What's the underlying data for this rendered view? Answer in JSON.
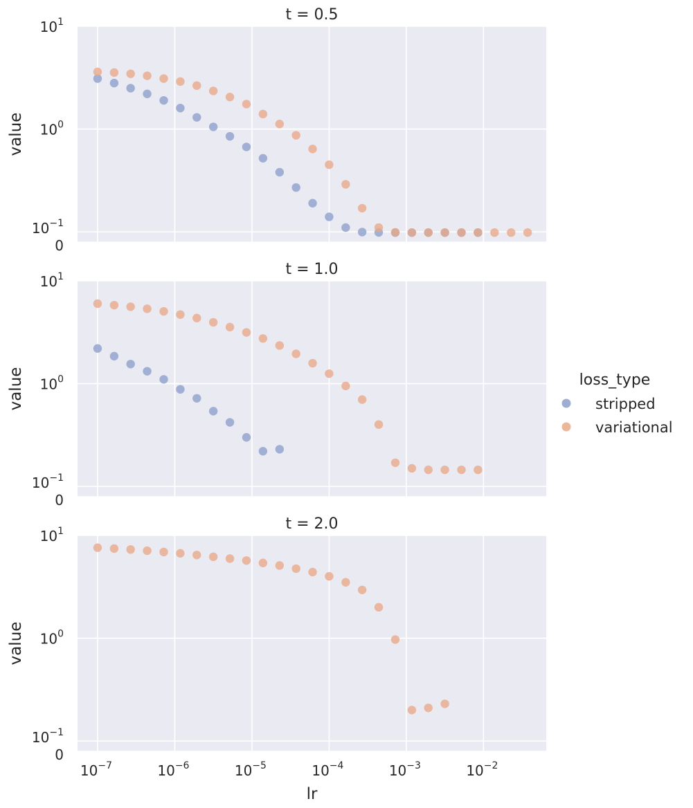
{
  "chart_data": {
    "type": "scatter",
    "xlabel": "lr",
    "ylabel": "value",
    "xscale": "log",
    "yscale": "symlog",
    "xlim": [
      5.5e-08,
      0.065
    ],
    "ylim": [
      0,
      10
    ],
    "x_ticks": [
      {
        "value": 1e-07,
        "base": "10",
        "exp": "−7"
      },
      {
        "value": 1e-06,
        "base": "10",
        "exp": "−6"
      },
      {
        "value": 1e-05,
        "base": "10",
        "exp": "−5"
      },
      {
        "value": 0.0001,
        "base": "10",
        "exp": "−4"
      },
      {
        "value": 0.001,
        "base": "10",
        "exp": "−3"
      },
      {
        "value": 0.01,
        "base": "10",
        "exp": "−2"
      }
    ],
    "y_ticks": [
      {
        "value": 0,
        "base": "0",
        "exp": ""
      },
      {
        "value": 0.1,
        "base": "10",
        "exp": "−1"
      },
      {
        "value": 1,
        "base": "10",
        "exp": "0"
      },
      {
        "value": 10,
        "base": "10",
        "exp": "1"
      }
    ],
    "grid": true,
    "legend": {
      "title": "loss_type",
      "placement": "right",
      "entries": [
        {
          "name": "stripped",
          "color": "#8da0cb"
        },
        {
          "name": "variational",
          "color": "#e9a98a"
        }
      ]
    },
    "panels": [
      {
        "title": "t = 0.5",
        "series": [
          {
            "name": "stripped",
            "x": [
              1e-07,
              1.64e-07,
              2.68e-07,
              4.39e-07,
              7.2e-07,
              1.18e-06,
              1.93e-06,
              3.16e-06,
              5.18e-06,
              8.48e-06,
              1.39e-05,
              2.28e-05,
              3.73e-05,
              6.11e-05,
              0.0001,
              0.000164,
              0.000268,
              0.000439,
              0.00072,
              0.00118,
              0.00193,
              0.00316,
              0.00518,
              0.00848
            ],
            "y": [
              3.1,
              2.8,
              2.5,
              2.2,
              1.9,
              1.6,
              1.3,
              1.05,
              0.85,
              0.67,
              0.52,
              0.38,
              0.27,
              0.19,
              0.14,
              0.11,
              0.098,
              0.094,
              0.093,
              0.093,
              0.093,
              0.093,
              0.093,
              0.093
            ]
          },
          {
            "name": "variational",
            "x": [
              1e-07,
              1.64e-07,
              2.68e-07,
              4.39e-07,
              7.2e-07,
              1.18e-06,
              1.93e-06,
              3.16e-06,
              5.18e-06,
              8.48e-06,
              1.39e-05,
              2.28e-05,
              3.73e-05,
              6.11e-05,
              0.0001,
              0.000164,
              0.000268,
              0.000439,
              0.00072,
              0.00118,
              0.00193,
              0.00316,
              0.00518,
              0.00848,
              0.0139,
              0.0228,
              0.0373
            ],
            "y": [
              3.6,
              3.55,
              3.45,
              3.3,
              3.1,
              2.9,
              2.65,
              2.35,
              2.05,
              1.75,
              1.4,
              1.12,
              0.87,
              0.64,
              0.45,
              0.29,
              0.17,
              0.11,
              0.095,
              0.093,
              0.093,
              0.093,
              0.093,
              0.093,
              0.093,
              0.093,
              0.093
            ]
          }
        ]
      },
      {
        "title": "t = 1.0",
        "series": [
          {
            "name": "stripped",
            "x": [
              1e-07,
              1.64e-07,
              2.68e-07,
              4.39e-07,
              7.2e-07,
              1.18e-06,
              1.93e-06,
              3.16e-06,
              5.18e-06,
              8.48e-06,
              1.39e-05,
              2.28e-05
            ],
            "y": [
              2.2,
              1.85,
              1.55,
              1.32,
              1.1,
              0.88,
              0.72,
              0.54,
              0.42,
              0.3,
              0.22,
              0.23
            ]
          },
          {
            "name": "variational",
            "x": [
              1e-07,
              1.64e-07,
              2.68e-07,
              4.39e-07,
              7.2e-07,
              1.18e-06,
              1.93e-06,
              3.16e-06,
              5.18e-06,
              8.48e-06,
              1.39e-05,
              2.28e-05,
              3.73e-05,
              6.11e-05,
              0.0001,
              0.000164,
              0.000268,
              0.000439,
              0.00072,
              0.00118,
              0.00193,
              0.00316,
              0.00518,
              0.00848
            ],
            "y": [
              6.0,
              5.8,
              5.6,
              5.35,
              5.05,
              4.7,
              4.35,
              3.95,
              3.55,
              3.15,
              2.75,
              2.35,
              1.95,
              1.58,
              1.25,
              0.95,
              0.7,
              0.4,
              0.17,
              0.15,
              0.145,
              0.145,
              0.145,
              0.145
            ]
          }
        ]
      },
      {
        "title": "t = 2.0",
        "series": [
          {
            "name": "variational",
            "x": [
              1e-07,
              1.64e-07,
              2.68e-07,
              4.39e-07,
              7.2e-07,
              1.18e-06,
              1.93e-06,
              3.16e-06,
              5.18e-06,
              8.48e-06,
              1.39e-05,
              2.28e-05,
              3.73e-05,
              6.11e-05,
              0.0001,
              0.000164,
              0.000268,
              0.000439,
              0.00072,
              0.00118,
              0.00193,
              0.00316
            ],
            "y": [
              7.6,
              7.45,
              7.3,
              7.1,
              6.9,
              6.7,
              6.45,
              6.2,
              5.95,
              5.7,
              5.4,
              5.1,
              4.75,
              4.4,
              4.0,
              3.5,
              2.95,
              2.0,
              0.97,
              0.2,
              0.21,
              0.23
            ]
          }
        ]
      }
    ]
  }
}
